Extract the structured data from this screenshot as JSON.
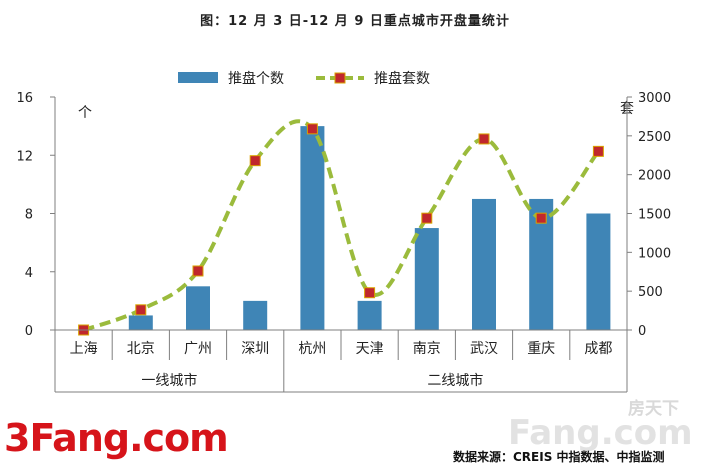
{
  "title": "图：12 月 3 日-12 月 9 日重点城市开盘量统计",
  "source": "数据来源：CREIS 中指数据、中指监测",
  "logo_left": {
    "digit": "3",
    "word": "Fang.com"
  },
  "logo_right": {
    "cn": "房天下",
    "en": "Fang.com"
  },
  "colors": {
    "bar": "#3f85b6",
    "line": "#9bbb3c",
    "marker": "#c0272d",
    "axis": "#7f7f7f"
  },
  "chart_data": {
    "type": "bar",
    "categories": [
      "上海",
      "北京",
      "广州",
      "深圳",
      "杭州",
      "天津",
      "南京",
      "武汉",
      "重庆",
      "成都"
    ],
    "groups": [
      {
        "label": "一线城市",
        "from": 0,
        "to": 3
      },
      {
        "label": "二线城市",
        "from": 4,
        "to": 9
      }
    ],
    "series": [
      {
        "name": "推盘个数",
        "type": "bar",
        "axis": "left",
        "values": [
          0,
          1,
          3,
          2,
          14,
          2,
          7,
          9,
          9,
          8
        ]
      },
      {
        "name": "推盘套数",
        "type": "line",
        "smooth": true,
        "dashed": true,
        "axis": "right",
        "values": [
          0,
          260,
          760,
          2180,
          2590,
          480,
          1440,
          2460,
          1440,
          2300
        ]
      }
    ],
    "y_left": {
      "unit": "个",
      "min": 0,
      "max": 16,
      "ticks": [
        0,
        4,
        8,
        12,
        16
      ]
    },
    "y_right": {
      "unit": "套",
      "min": 0,
      "max": 3000,
      "ticks": [
        0,
        500,
        1000,
        1500,
        2000,
        2500,
        3000
      ]
    },
    "legend_position": "top-center",
    "grid": false
  }
}
